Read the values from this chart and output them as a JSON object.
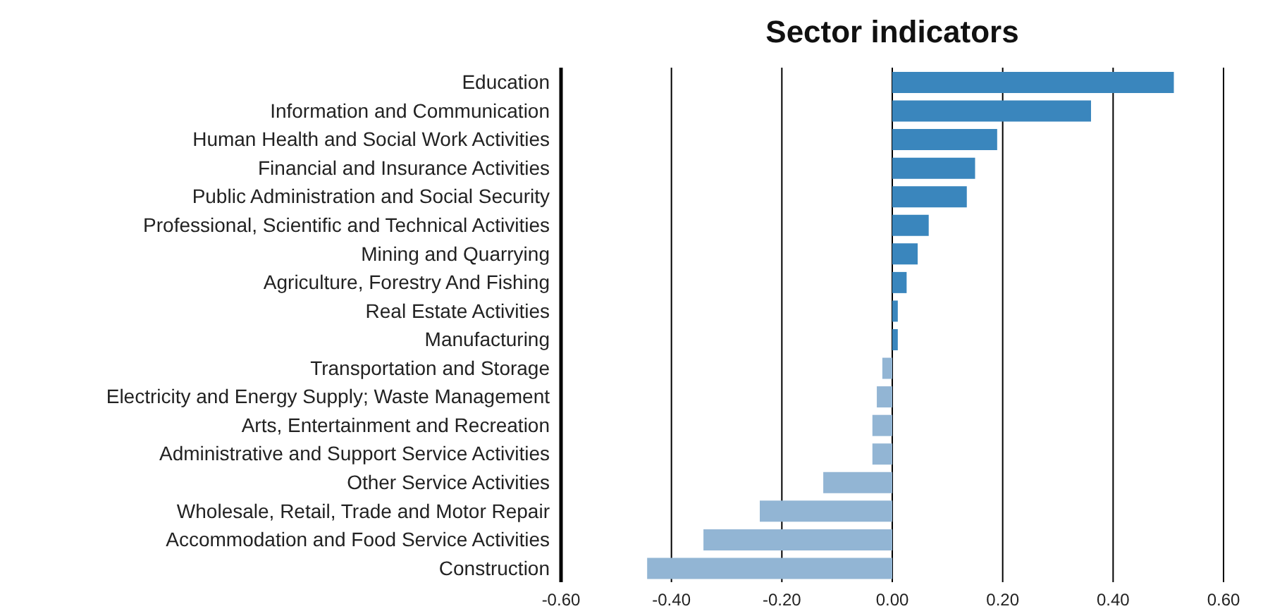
{
  "chart_data": {
    "type": "bar",
    "orientation": "horizontal",
    "title": "Sector indicators",
    "categories": [
      "Education",
      "Information and Communication",
      "Human Health and Social Work Activities",
      "Financial and Insurance Activities",
      "Public Administration and Social Security",
      "Professional, Scientific and Technical Activities",
      "Mining and Quarrying",
      "Agriculture, Forestry And Fishing",
      "Real Estate Activities",
      "Manufacturing",
      "Transportation and Storage",
      "Electricity and Energy Supply; Waste Management",
      "Arts, Entertainment and Recreation",
      "Administrative and Support Service Activities",
      "Other Service Activities",
      "Wholesale, Retail, Trade and Motor Repair",
      "Accommodation and Food Service Activities",
      "Construction"
    ],
    "values": [
      0.51,
      0.36,
      0.19,
      0.15,
      0.135,
      0.066,
      0.046,
      0.026,
      0.01,
      0.01,
      -0.018,
      -0.028,
      -0.036,
      -0.036,
      -0.125,
      -0.24,
      -0.342,
      -0.444
    ],
    "colors": [
      "#3a86bd",
      "#3a86bd",
      "#3a86bd",
      "#3a86bd",
      "#3a86bd",
      "#3a86bd",
      "#3a86bd",
      "#3a86bd",
      "#3a86bd",
      "#3a86bd",
      "#92b5d4",
      "#92b5d4",
      "#92b5d4",
      "#92b5d4",
      "#92b5d4",
      "#92b5d4",
      "#92b5d4",
      "#92b5d4"
    ],
    "xlim": [
      -0.6,
      0.6
    ],
    "xticks": [
      {
        "value": -0.6,
        "label": "-0.60"
      },
      {
        "value": -0.4,
        "label": "-0.40"
      },
      {
        "value": -0.2,
        "label": "-0.20"
      },
      {
        "value": 0,
        "label": "0.00"
      },
      {
        "value": 0.2,
        "label": "0.20"
      },
      {
        "value": 0.4,
        "label": "0.40"
      },
      {
        "value": 0.6,
        "label": "0.60"
      }
    ],
    "grid": "x",
    "legend": false
  }
}
